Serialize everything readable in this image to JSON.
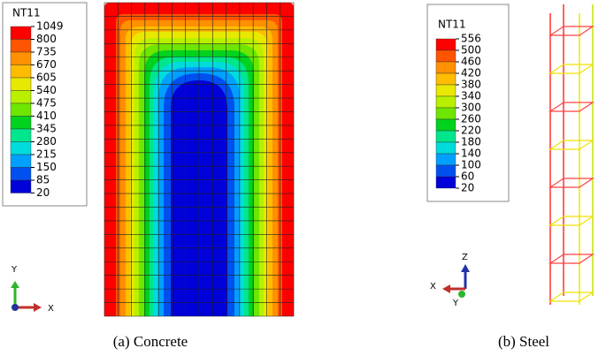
{
  "panels": [
    {
      "legend": {
        "title": "NT11",
        "labels": [
          1049,
          800,
          735,
          670,
          605,
          540,
          475,
          410,
          345,
          280,
          215,
          150,
          85,
          20
        ],
        "colors": [
          "#ff0000",
          "#ff5400",
          "#ff9000",
          "#ffbc00",
          "#e8e800",
          "#b8f000",
          "#6ee600",
          "#00d21e",
          "#00e68c",
          "#00dcdc",
          "#00a0ff",
          "#0050f0",
          "#0000d8"
        ]
      },
      "triad": [
        "Y",
        "X"
      ],
      "caption": "(a) Concrete"
    },
    {
      "legend": {
        "title": "NT11",
        "labels": [
          556,
          500,
          460,
          420,
          380,
          340,
          300,
          260,
          220,
          180,
          140,
          100,
          60,
          20
        ],
        "colors": [
          "#ff0000",
          "#ff5400",
          "#ff9000",
          "#ffbc00",
          "#e8e800",
          "#b8f000",
          "#6ee600",
          "#00d21e",
          "#00e68c",
          "#00dcdc",
          "#00a0ff",
          "#0050f0",
          "#0000d8"
        ]
      },
      "triad": [
        "Z",
        "X",
        "Y"
      ],
      "caption": "(b) Steel"
    }
  ]
}
